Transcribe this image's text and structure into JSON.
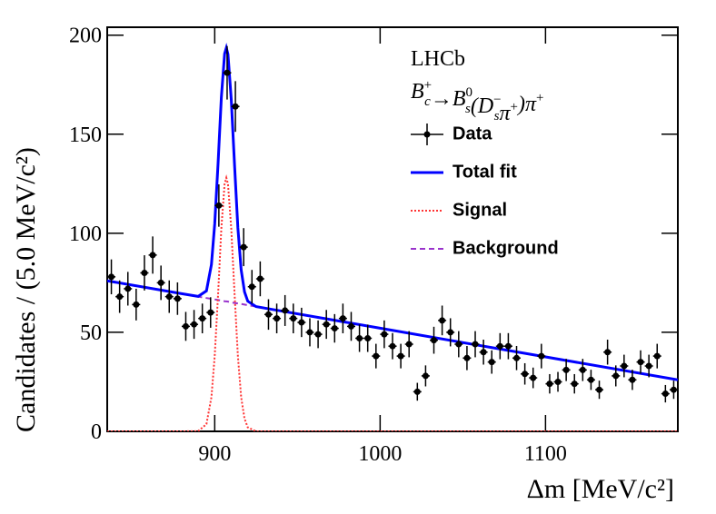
{
  "chart_data": {
    "type": "histogram-fit",
    "experiment": "LHCb",
    "decay": [
      {
        "t": "B",
        "sub": "c",
        "sup": "+"
      },
      {
        "t": "→B",
        "sub": "s",
        "sup": "0"
      },
      {
        "t": "(D",
        "sub": "s",
        "sup": "−"
      },
      {
        "t": "π",
        "sup": "+"
      },
      {
        "t": ")π",
        "sup": "+"
      }
    ],
    "xlabel": "Δm [MeV/c²]",
    "ylabel": "Candidates / (5.0 MeV/c²)",
    "xlim": [
      835,
      1180
    ],
    "ylim": [
      0,
      204
    ],
    "xticks": [
      900,
      1000,
      1100
    ],
    "yticks": [
      0,
      50,
      100,
      150,
      200
    ],
    "data": {
      "name": "Data",
      "color": "#000000",
      "x": [
        837.5,
        842.5,
        847.5,
        852.5,
        857.5,
        862.5,
        867.5,
        872.5,
        877.5,
        882.5,
        887.5,
        892.5,
        897.5,
        902.5,
        907.5,
        912.5,
        917.5,
        922.5,
        927.5,
        932.5,
        937.5,
        942.5,
        947.5,
        952.5,
        957.5,
        962.5,
        967.5,
        972.5,
        977.5,
        982.5,
        987.5,
        992.5,
        997.5,
        1002.5,
        1007.5,
        1012.5,
        1017.5,
        1022.5,
        1027.5,
        1032.5,
        1037.5,
        1042.5,
        1047.5,
        1052.5,
        1057.5,
        1062.5,
        1067.5,
        1072.5,
        1077.5,
        1082.5,
        1087.5,
        1092.5,
        1097.5,
        1102.5,
        1107.5,
        1112.5,
        1117.5,
        1122.5,
        1127.5,
        1132.5,
        1137.5,
        1142.5,
        1147.5,
        1152.5,
        1157.5,
        1162.5,
        1167.5,
        1172.5,
        1177.5
      ],
      "values": [
        78,
        68,
        72,
        64,
        80,
        89,
        75,
        68,
        67,
        53,
        54,
        57,
        60,
        114,
        181,
        164,
        93,
        73,
        77,
        59,
        57,
        61,
        57,
        55,
        50,
        49,
        54,
        52,
        57,
        53,
        47,
        47,
        38,
        49,
        43,
        38,
        44,
        20,
        28,
        46,
        56,
        50,
        44,
        37,
        44,
        40,
        35,
        43,
        43,
        37,
        29,
        27,
        38,
        24,
        25,
        31,
        24,
        31,
        26,
        21,
        40,
        28,
        33,
        26,
        35,
        33,
        38,
        19,
        21
      ],
      "errors": [
        8.8,
        8.2,
        8.5,
        8.0,
        8.9,
        9.4,
        8.7,
        8.2,
        8.2,
        7.3,
        7.3,
        7.5,
        7.7,
        10.7,
        13.5,
        12.8,
        9.6,
        8.5,
        8.8,
        7.7,
        7.5,
        7.8,
        7.5,
        7.4,
        7.1,
        7.0,
        7.3,
        7.2,
        7.5,
        7.3,
        6.9,
        6.9,
        6.2,
        7.0,
        6.6,
        6.2,
        6.6,
        4.5,
        5.3,
        6.8,
        7.5,
        7.1,
        6.6,
        6.1,
        6.6,
        6.3,
        5.9,
        6.6,
        6.6,
        6.1,
        5.4,
        5.2,
        6.2,
        4.9,
        5.0,
        5.6,
        4.9,
        5.6,
        5.1,
        4.6,
        6.3,
        5.3,
        5.7,
        5.1,
        5.9,
        5.7,
        6.2,
        4.4,
        4.6
      ]
    },
    "curve_x": [
      835,
      880,
      890,
      895,
      898,
      900,
      902,
      904,
      906,
      907,
      908,
      910,
      912,
      914,
      916,
      918,
      920,
      925,
      935,
      1000,
      1100,
      1180
    ],
    "series": [
      {
        "name": "Total fit",
        "color": "#0000ff",
        "style": "solid",
        "values": [
          76.0,
          69.5,
          68.1,
          70.9,
          84.2,
          104.7,
          135.3,
          168.5,
          190.6,
          193.6,
          190.4,
          167.6,
          133.8,
          102.7,
          81.6,
          70.4,
          65.7,
          63.0,
          61.5,
          52.1,
          37.6,
          26.0
        ]
      },
      {
        "name": "Signal",
        "color": "#ff3333",
        "style": "dotted",
        "values": [
          0,
          0,
          0.1,
          3.6,
          17.3,
          38.1,
          69.0,
          102.5,
          124.9,
          128,
          124.9,
          102.5,
          69.0,
          38.1,
          17.3,
          6.4,
          2.0,
          0,
          0,
          0,
          0,
          0
        ]
      },
      {
        "name": "Background",
        "color": "#9933cc",
        "style": "dashed",
        "values": [
          76.0,
          69.5,
          68.0,
          67.3,
          66.9,
          66.6,
          66.3,
          66.0,
          65.7,
          65.6,
          65.5,
          65.1,
          64.8,
          64.6,
          64.3,
          64.0,
          63.7,
          63.0,
          61.5,
          52.1,
          37.6,
          26.0
        ]
      }
    ]
  }
}
